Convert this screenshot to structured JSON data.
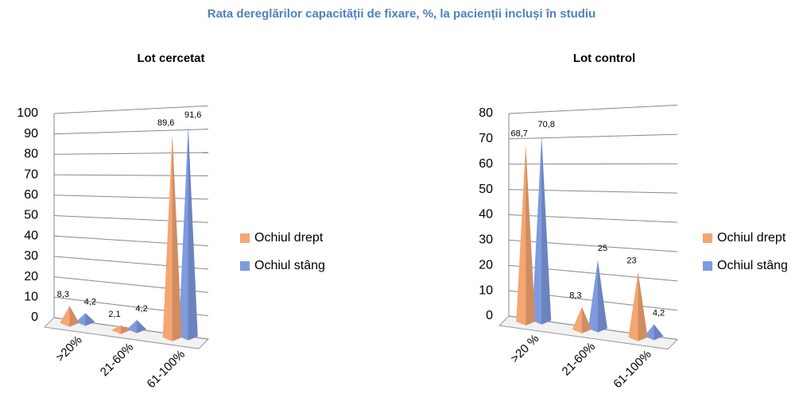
{
  "title": "Rata dereglărilor capacității de fixare, %, la pacienții incluși în studiu",
  "chart_data": [
    {
      "type": "pyramid",
      "title": "Lot cercetat",
      "categories": [
        ">20%",
        "21-60%",
        "61-100%"
      ],
      "series": [
        {
          "name": "Ochiul drept",
          "color": "#F5A672",
          "values": [
            8.3,
            2.1,
            89.6
          ],
          "value_labels": [
            "8,3",
            "2,1",
            "89,6"
          ]
        },
        {
          "name": "Ochiul stâng",
          "color": "#7E9BE0",
          "values": [
            4.2,
            4.2,
            91.6
          ],
          "value_labels": [
            "4,2",
            "4,2",
            "91,6"
          ]
        }
      ],
      "ylim": [
        0,
        100
      ],
      "yticks": [
        0,
        10,
        20,
        30,
        40,
        50,
        60,
        70,
        80,
        90,
        100
      ],
      "grid": true,
      "legend": "right"
    },
    {
      "type": "pyramid",
      "title": "Lot control",
      "categories": [
        ">20 %",
        "21-60%",
        "61-100%"
      ],
      "series": [
        {
          "name": "Ochiul drept",
          "color": "#F5A672",
          "values": [
            68.7,
            8.3,
            23
          ],
          "value_labels": [
            "68,7",
            "8,3",
            "23"
          ]
        },
        {
          "name": "Ochiul stâng",
          "color": "#7E9BE0",
          "values": [
            70.8,
            25,
            4.2
          ],
          "value_labels": [
            "70,8",
            "25",
            "4,2"
          ]
        }
      ],
      "ylim": [
        0,
        80
      ],
      "yticks": [
        0,
        10,
        20,
        30,
        40,
        50,
        60,
        70,
        80
      ],
      "grid": true,
      "legend": "right"
    }
  ]
}
